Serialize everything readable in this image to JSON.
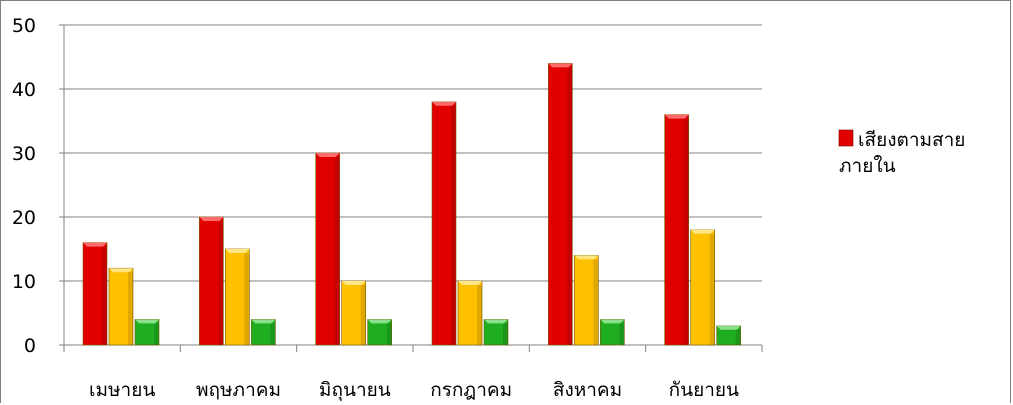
{
  "chart_data": {
    "type": "bar",
    "categories": [
      "เมษายน",
      "พฤษภาคม",
      "มิถุนายน",
      "กรกฎาคม",
      "สิงหาคม",
      "กันยายน"
    ],
    "series": [
      {
        "name": "เสียงตามสายภายใน",
        "color": "#e00000",
        "top_color": "#ff6a6a",
        "values": [
          16,
          20,
          30,
          38,
          44,
          36
        ]
      },
      {
        "color": "#ffc000",
        "top_color": "#ffe680",
        "values": [
          12,
          15,
          10,
          10,
          14,
          18
        ]
      },
      {
        "color": "#1fae1f",
        "top_color": "#8be08b",
        "values": [
          4,
          4,
          4,
          4,
          4,
          3
        ]
      }
    ],
    "ylim": [
      0,
      50
    ],
    "yticks": [
      "0",
      "10",
      "20",
      "30",
      "40",
      "50"
    ],
    "grid": true,
    "legend": {
      "placement": "right",
      "lines": [
        "เสียงตามสาย",
        "ภายใน"
      ]
    }
  }
}
